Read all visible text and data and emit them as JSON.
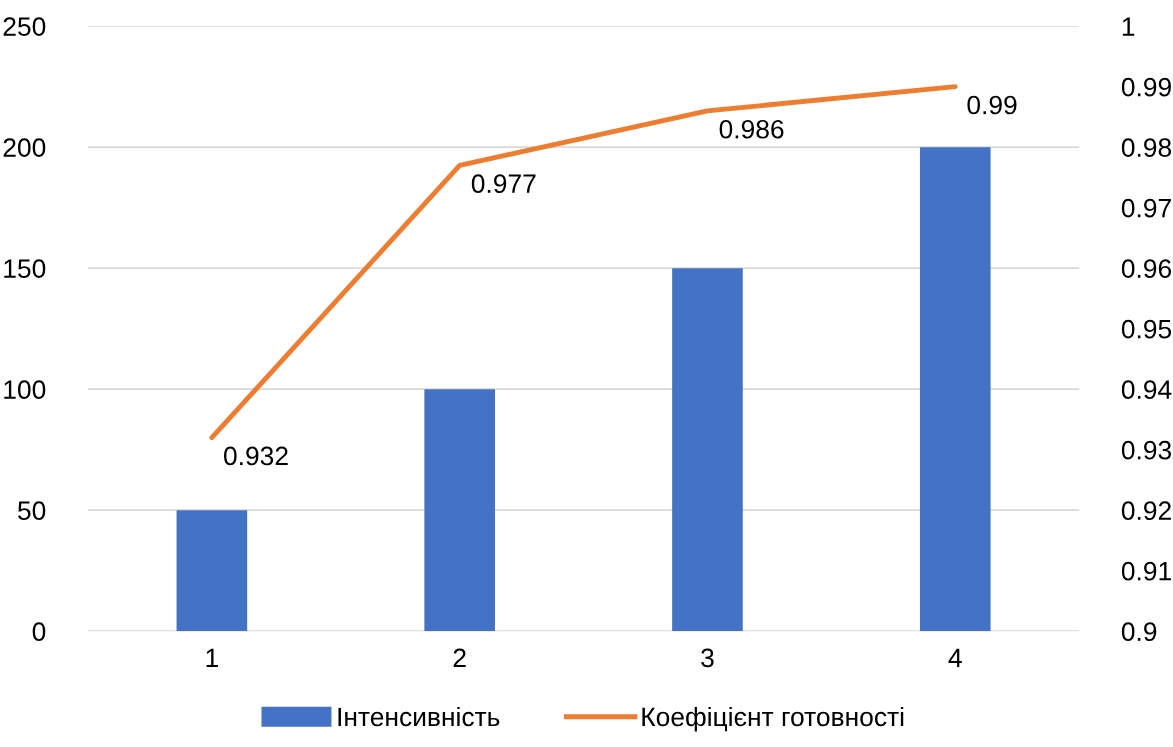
{
  "chart_data": {
    "type": "bar",
    "categories": [
      "1",
      "2",
      "3",
      "4"
    ],
    "series": [
      {
        "name": "Інтенсивність",
        "color": "#4472c4",
        "values": [
          50,
          100,
          150,
          200
        ]
      },
      {
        "name": "Коефіцієнт готовності",
        "type": "line",
        "axis": "y2",
        "color": "#ed7d31",
        "values": [
          0.932,
          0.977,
          0.986,
          0.99
        ],
        "value_labels": [
          "0.932",
          "0.977",
          "0.986",
          "0.99"
        ]
      }
    ],
    "ylim": [
      0,
      250
    ],
    "yticks": [
      0,
      50,
      100,
      150,
      200,
      250
    ],
    "y2lim": [
      0.9,
      1
    ],
    "y2ticks": [
      0.9,
      0.91,
      0.92,
      0.93,
      0.94,
      0.95,
      0.96,
      0.97,
      0.98,
      0.99,
      1
    ],
    "grid": "y",
    "legend": "bottom",
    "marker": "none"
  }
}
